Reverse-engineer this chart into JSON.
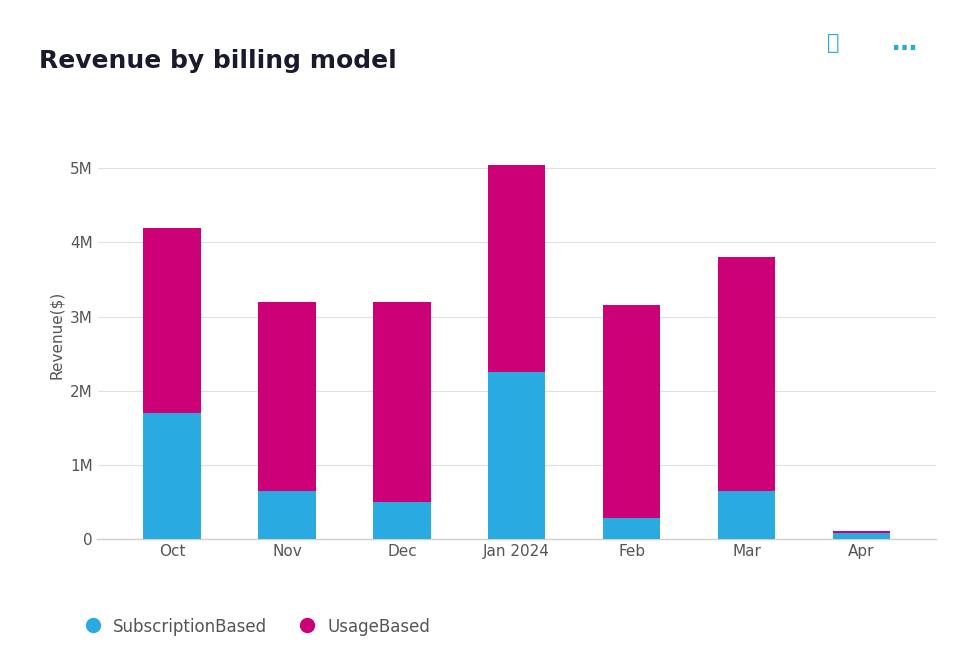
{
  "title": "Revenue by billing model",
  "ylabel": "Revenue($)",
  "categories": [
    "Oct",
    "Nov",
    "Dec",
    "Jan 2024",
    "Feb",
    "Mar",
    "Apr"
  ],
  "subscription_based": [
    1700000,
    650000,
    500000,
    2250000,
    280000,
    650000,
    80000
  ],
  "usage_based": [
    2500000,
    2550000,
    2700000,
    2800000,
    2870000,
    3150000,
    20000
  ],
  "color_subscription": "#29ABE2",
  "color_usage": "#CC0077",
  "background_color": "#FFFFFF",
  "ylim": [
    0,
    5500000
  ],
  "yticks": [
    0,
    1000000,
    2000000,
    3000000,
    4000000,
    5000000
  ],
  "ytick_labels": [
    "0",
    "1M",
    "2M",
    "3M",
    "4M",
    "5M"
  ],
  "legend_labels": [
    "SubscriptionBased",
    "UsageBased"
  ],
  "title_fontsize": 18,
  "axis_fontsize": 11,
  "tick_fontsize": 11,
  "legend_fontsize": 12,
  "bar_width": 0.5,
  "icon_color": "#29ABE2",
  "title_color": "#1A1A2E",
  "tick_color": "#555555",
  "grid_color": "#E0E0E0",
  "spine_color": "#D0D0D0"
}
